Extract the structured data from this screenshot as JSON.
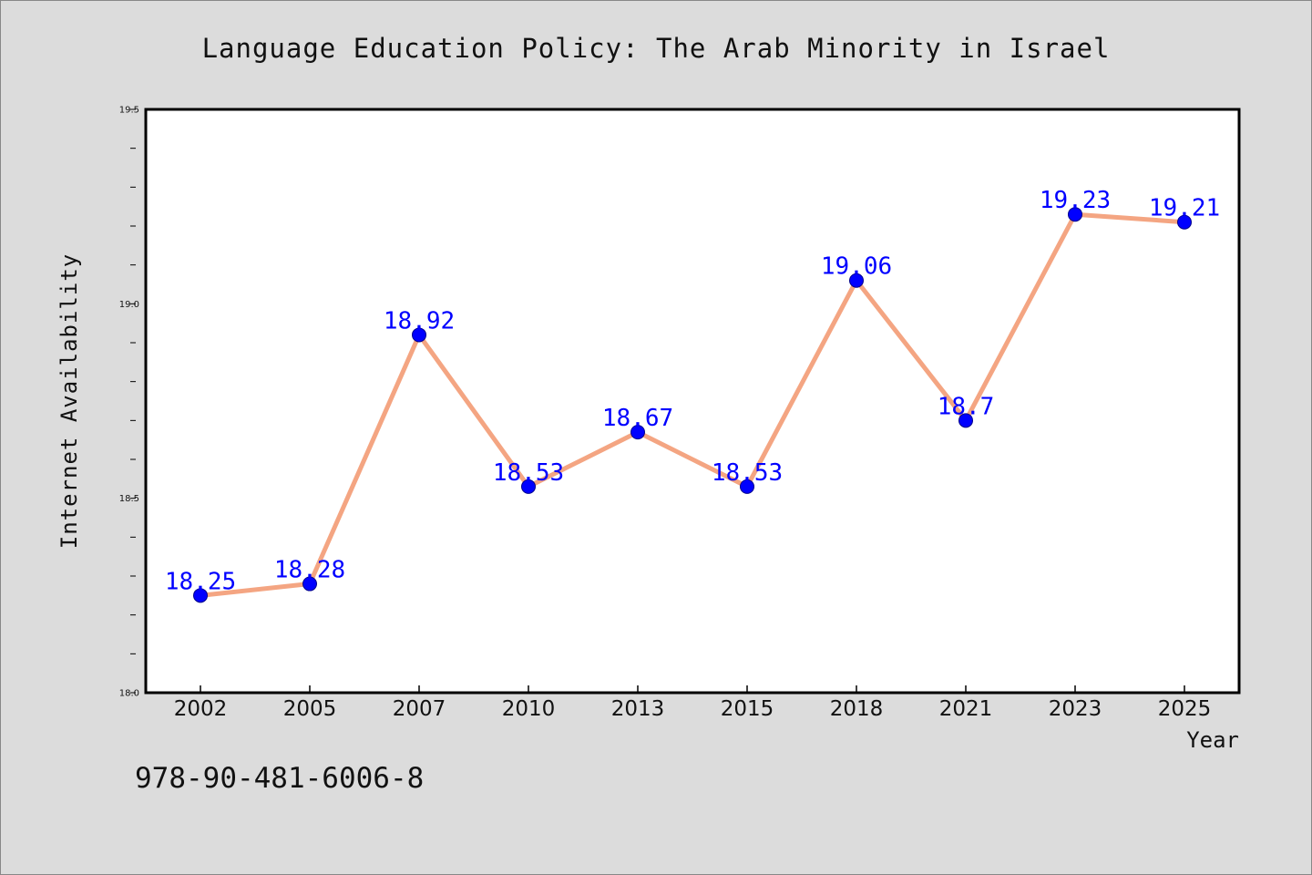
{
  "chart_data": {
    "type": "line",
    "title": "Language Education Policy: The Arab Minority in Israel",
    "xlabel": "Year",
    "ylabel": "Internet Availability",
    "categories": [
      "2002",
      "2005",
      "2007",
      "2010",
      "2013",
      "2015",
      "2018",
      "2021",
      "2023",
      "2025"
    ],
    "series": [
      {
        "values": [
          18.25,
          18.28,
          18.92,
          18.53,
          18.67,
          18.53,
          19.06,
          18.7,
          19.23,
          19.21
        ],
        "labels": [
          "18.25",
          "18.28",
          "18.92",
          "18.53",
          "18.67",
          "18.53",
          "19.06",
          "18.7",
          "19.23",
          "19.21"
        ],
        "line_color": "#f4a582",
        "marker_color": "#0000ff",
        "label_color": "#0000ff"
      }
    ],
    "ylim": [
      18.0,
      19.5
    ],
    "yticks": [
      "18.0",
      "18.5",
      "19.0",
      "19.5"
    ],
    "grid": false,
    "legend": "none"
  },
  "footer_text": "978-90-481-6006-8",
  "colors": {
    "background": "#dcdcdc",
    "plot_area": "#ffffff",
    "axis": "#000000"
  }
}
